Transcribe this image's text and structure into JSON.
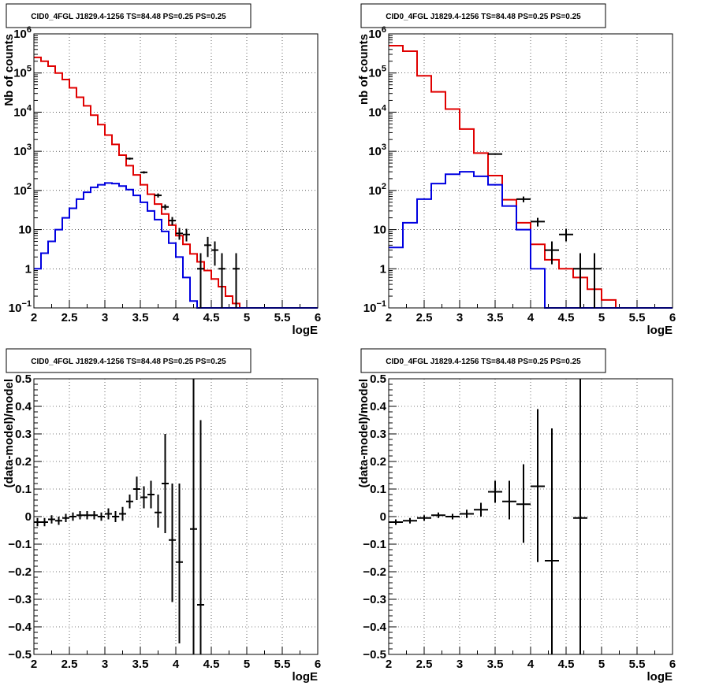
{
  "chart_data": [
    {
      "type": "line",
      "title": "CID0_4FGL J1829.4-1256 TS=84.48 PS=0.25 PS=0.25",
      "xlabel": "logE",
      "ylabel": "Nb of counts",
      "xlim": [
        2,
        6
      ],
      "ylim": [
        0.1,
        1000000
      ],
      "yscale": "log",
      "grid": true,
      "xticks": [
        "2",
        "2.5",
        "3",
        "3.5",
        "4",
        "4.5",
        "5",
        "5.5",
        "6"
      ],
      "yticks": [
        {
          "v": 0.1,
          "b": "10",
          "e": "−1"
        },
        {
          "v": 1,
          "b": "1",
          "e": ""
        },
        {
          "v": 10,
          "b": "10",
          "e": ""
        },
        {
          "v": 100,
          "b": "10",
          "e": "2"
        },
        {
          "v": 1000,
          "b": "10",
          "e": "3"
        },
        {
          "v": 10000,
          "b": "10",
          "e": "4"
        },
        {
          "v": 100000,
          "b": "10",
          "e": "5"
        },
        {
          "v": 1000000,
          "b": "10",
          "e": "6"
        }
      ],
      "bin_edges": [
        2.0,
        2.1,
        2.2,
        2.3,
        2.4,
        2.5,
        2.6,
        2.7,
        2.8,
        2.9,
        3.0,
        3.1,
        3.2,
        3.3,
        3.4,
        3.5,
        3.6,
        3.7,
        3.8,
        3.9,
        4.0,
        4.1,
        4.2,
        4.3,
        4.4,
        4.5,
        4.6,
        4.7,
        4.8,
        4.9,
        5.0,
        5.1,
        5.2,
        5.3,
        5.4,
        5.5,
        5.6,
        5.7,
        5.8,
        5.9,
        6.0
      ],
      "series": [
        {
          "name": "",
          "color": "#e00000",
          "style": "step",
          "values": [
            250000,
            200000,
            150000,
            100000,
            68000,
            42000,
            24000,
            14500,
            8400,
            4800,
            2600,
            1500,
            800,
            430,
            250,
            140,
            80,
            45,
            25,
            13,
            7,
            4.2,
            2.4,
            1.5,
            0.9,
            0.55,
            0.35,
            0.2,
            0.13,
            0.1,
            0.1,
            0.1,
            0.1,
            0.1,
            0.1,
            0.1,
            0.1,
            0.1,
            0.1,
            0.1
          ]
        },
        {
          "name": "",
          "color": "#0000e0",
          "style": "step",
          "values": [
            1,
            2.5,
            5,
            10,
            20,
            35,
            60,
            90,
            120,
            140,
            155,
            150,
            130,
            105,
            75,
            50,
            30,
            18,
            9,
            4.5,
            2,
            0.6,
            0.15,
            0.1,
            0.1,
            0.1,
            0.1,
            0.1,
            0.1,
            0.1,
            0.1,
            0.1,
            0.1,
            0.1,
            0.1,
            0.1,
            0.1,
            0.1,
            0.1,
            0.1
          ]
        }
      ],
      "points": [
        {
          "x": 3.35,
          "y": 650,
          "lo": 610,
          "hi": 690,
          "xerr": 0.05
        },
        {
          "x": 3.55,
          "y": 290,
          "lo": 270,
          "hi": 310,
          "xerr": 0.05
        },
        {
          "x": 3.75,
          "y": 75,
          "lo": 66,
          "hi": 84,
          "xerr": 0.05
        },
        {
          "x": 3.85,
          "y": 38,
          "lo": 32,
          "hi": 44,
          "xerr": 0.05
        },
        {
          "x": 3.95,
          "y": 17,
          "lo": 13,
          "hi": 21,
          "xerr": 0.05
        },
        {
          "x": 4.05,
          "y": 8,
          "lo": 5.5,
          "hi": 11,
          "xerr": 0.05
        },
        {
          "x": 4.15,
          "y": 7.5,
          "lo": 5,
          "hi": 10.5,
          "xerr": 0.05
        },
        {
          "x": 4.35,
          "y": 1,
          "lo": 0.1,
          "hi": 2.5,
          "xerr": 0.05
        },
        {
          "x": 4.45,
          "y": 4,
          "lo": 2,
          "hi": 6.5,
          "xerr": 0.05
        },
        {
          "x": 4.55,
          "y": 3,
          "lo": 1.2,
          "hi": 5,
          "xerr": 0.05
        },
        {
          "x": 4.65,
          "y": 1,
          "lo": 0.1,
          "hi": 2.5,
          "xerr": 0.05
        },
        {
          "x": 4.85,
          "y": 1,
          "lo": 0.1,
          "hi": 2.5,
          "xerr": 0.05
        }
      ]
    },
    {
      "type": "line",
      "title": "CID0_4FGL J1829.4-1256 TS=84.48 PS=0.25 PS=0.25",
      "xlabel": "logE",
      "ylabel": "nb of counts",
      "xlim": [
        2,
        6
      ],
      "ylim": [
        0.1,
        1000000
      ],
      "yscale": "log",
      "grid": true,
      "xticks": [
        "2",
        "2.5",
        "3",
        "3.5",
        "4",
        "4.5",
        "5",
        "5.5",
        "6"
      ],
      "yticks": [
        {
          "v": 0.1,
          "b": "10",
          "e": "−1"
        },
        {
          "v": 1,
          "b": "1",
          "e": ""
        },
        {
          "v": 10,
          "b": "10",
          "e": ""
        },
        {
          "v": 100,
          "b": "10",
          "e": "2"
        },
        {
          "v": 1000,
          "b": "10",
          "e": "3"
        },
        {
          "v": 10000,
          "b": "10",
          "e": "4"
        },
        {
          "v": 100000,
          "b": "10",
          "e": "5"
        },
        {
          "v": 1000000,
          "b": "10",
          "e": "6"
        }
      ],
      "bin_edges": [
        2.0,
        2.2,
        2.4,
        2.6,
        2.8,
        3.0,
        3.2,
        3.4,
        3.6,
        3.8,
        4.0,
        4.2,
        4.4,
        4.6,
        4.8,
        5.0,
        5.2,
        5.4,
        5.6,
        5.8,
        6.0
      ],
      "series": [
        {
          "name": "",
          "color": "#e00000",
          "style": "step",
          "values": [
            500000,
            360000,
            85000,
            33000,
            12000,
            3700,
            900,
            240,
            58,
            15,
            4.2,
            1.7,
            1.0,
            0.6,
            0.3,
            0.16,
            0.1,
            0.1,
            0.1,
            0.1
          ]
        },
        {
          "name": "",
          "color": "#0000e0",
          "style": "step",
          "values": [
            3.5,
            15,
            60,
            150,
            260,
            300,
            230,
            140,
            40,
            10,
            1,
            0.1,
            0.1,
            0.1,
            0.1,
            0.1,
            0.1,
            0.1,
            0.1,
            0.1
          ]
        }
      ],
      "points": [
        {
          "x": 3.5,
          "y": 850,
          "lo": 810,
          "hi": 890,
          "xerr": 0.1
        },
        {
          "x": 3.9,
          "y": 60,
          "lo": 50,
          "hi": 70,
          "xerr": 0.1
        },
        {
          "x": 4.1,
          "y": 16,
          "lo": 12,
          "hi": 20,
          "xerr": 0.1
        },
        {
          "x": 4.3,
          "y": 3,
          "lo": 1.3,
          "hi": 5,
          "xerr": 0.1
        },
        {
          "x": 4.5,
          "y": 7.5,
          "lo": 5,
          "hi": 10.5,
          "xerr": 0.1
        },
        {
          "x": 4.7,
          "y": 1,
          "lo": 0.1,
          "hi": 2.5,
          "xerr": 0.1
        },
        {
          "x": 4.9,
          "y": 1,
          "lo": 0.1,
          "hi": 2.5,
          "xerr": 0.1
        }
      ]
    },
    {
      "type": "scatter",
      "title": "CID0_4FGL J1829.4-1256 TS=84.48 PS=0.25 PS=0.25",
      "xlabel": "logE",
      "ylabel": "(data-model)/model",
      "xlim": [
        2,
        6
      ],
      "ylim": [
        -0.5,
        0.5
      ],
      "yscale": "linear",
      "grid": true,
      "xticks": [
        "2",
        "2.5",
        "3",
        "3.5",
        "4",
        "4.5",
        "5",
        "5.5",
        "6"
      ],
      "yticks": [
        {
          "v": -0.5,
          "b": "−0.5",
          "e": ""
        },
        {
          "v": -0.4,
          "b": "−0.4",
          "e": ""
        },
        {
          "v": -0.3,
          "b": "−0.3",
          "e": ""
        },
        {
          "v": -0.2,
          "b": "−0.2",
          "e": ""
        },
        {
          "v": -0.1,
          "b": "−0.1",
          "e": ""
        },
        {
          "v": 0,
          "b": "0",
          "e": ""
        },
        {
          "v": 0.1,
          "b": "0.1",
          "e": ""
        },
        {
          "v": 0.2,
          "b": "0.2",
          "e": ""
        },
        {
          "v": 0.3,
          "b": "0.3",
          "e": ""
        },
        {
          "v": 0.4,
          "b": "0.4",
          "e": ""
        },
        {
          "v": 0.5,
          "b": "0.5",
          "e": ""
        }
      ],
      "points": [
        {
          "x": 2.05,
          "y": -0.02,
          "lo": -0.035,
          "hi": -0.005,
          "xerr": 0.05
        },
        {
          "x": 2.15,
          "y": -0.02,
          "lo": -0.035,
          "hi": -0.005,
          "xerr": 0.05
        },
        {
          "x": 2.25,
          "y": -0.01,
          "lo": -0.025,
          "hi": 0.005,
          "xerr": 0.05
        },
        {
          "x": 2.35,
          "y": -0.015,
          "lo": -0.03,
          "hi": 0.0,
          "xerr": 0.05
        },
        {
          "x": 2.45,
          "y": -0.005,
          "lo": -0.02,
          "hi": 0.01,
          "xerr": 0.05
        },
        {
          "x": 2.55,
          "y": 0.0,
          "lo": -0.015,
          "hi": 0.015,
          "xerr": 0.05
        },
        {
          "x": 2.65,
          "y": 0.005,
          "lo": -0.01,
          "hi": 0.02,
          "xerr": 0.05
        },
        {
          "x": 2.75,
          "y": 0.005,
          "lo": -0.01,
          "hi": 0.02,
          "xerr": 0.05
        },
        {
          "x": 2.85,
          "y": 0.005,
          "lo": -0.01,
          "hi": 0.02,
          "xerr": 0.05
        },
        {
          "x": 2.95,
          "y": 0.0,
          "lo": -0.015,
          "hi": 0.015,
          "xerr": 0.05
        },
        {
          "x": 3.05,
          "y": 0.01,
          "lo": -0.01,
          "hi": 0.03,
          "xerr": 0.05
        },
        {
          "x": 3.15,
          "y": 0.0,
          "lo": -0.02,
          "hi": 0.02,
          "xerr": 0.05
        },
        {
          "x": 3.25,
          "y": 0.01,
          "lo": -0.015,
          "hi": 0.035,
          "xerr": 0.05
        },
        {
          "x": 3.35,
          "y": 0.055,
          "lo": 0.03,
          "hi": 0.08,
          "xerr": 0.05
        },
        {
          "x": 3.45,
          "y": 0.1,
          "lo": 0.06,
          "hi": 0.145,
          "xerr": 0.05
        },
        {
          "x": 3.55,
          "y": 0.07,
          "lo": 0.03,
          "hi": 0.11,
          "xerr": 0.05
        },
        {
          "x": 3.65,
          "y": 0.08,
          "lo": 0.03,
          "hi": 0.13,
          "xerr": 0.05
        },
        {
          "x": 3.75,
          "y": 0.015,
          "lo": -0.04,
          "hi": 0.08,
          "xerr": 0.05
        },
        {
          "x": 3.85,
          "y": 0.12,
          "lo": -0.06,
          "hi": 0.3,
          "xerr": 0.05
        },
        {
          "x": 3.95,
          "y": -0.085,
          "lo": -0.31,
          "hi": 0.12,
          "xerr": 0.05
        },
        {
          "x": 4.05,
          "y": -0.165,
          "lo": -0.46,
          "hi": 0.12,
          "xerr": 0.05
        },
        {
          "x": 4.25,
          "y": -0.045,
          "lo": -0.5,
          "hi": 0.5,
          "xerr": 0.05
        },
        {
          "x": 4.35,
          "y": -0.32,
          "lo": -0.5,
          "hi": 0.35,
          "xerr": 0.05
        }
      ]
    },
    {
      "type": "scatter",
      "title": "CID0_4FGL J1829.4-1256 TS=84.48 PS=0.25 PS=0.25",
      "xlabel": "logE",
      "ylabel": "(data-model)/model",
      "xlim": [
        2,
        6
      ],
      "ylim": [
        -0.5,
        0.5
      ],
      "yscale": "linear",
      "grid": true,
      "xticks": [
        "2",
        "2.5",
        "3",
        "3.5",
        "4",
        "4.5",
        "5",
        "5.5",
        "6"
      ],
      "yticks": [
        {
          "v": -0.5,
          "b": "−0.5",
          "e": ""
        },
        {
          "v": -0.4,
          "b": "−0.4",
          "e": ""
        },
        {
          "v": -0.3,
          "b": "−0.3",
          "e": ""
        },
        {
          "v": -0.2,
          "b": "−0.2",
          "e": ""
        },
        {
          "v": -0.1,
          "b": "−0.1",
          "e": ""
        },
        {
          "v": 0,
          "b": "0",
          "e": ""
        },
        {
          "v": 0.1,
          "b": "0.1",
          "e": ""
        },
        {
          "v": 0.2,
          "b": "0.2",
          "e": ""
        },
        {
          "v": 0.3,
          "b": "0.3",
          "e": ""
        },
        {
          "v": 0.4,
          "b": "0.4",
          "e": ""
        },
        {
          "v": 0.5,
          "b": "0.5",
          "e": ""
        }
      ],
      "points": [
        {
          "x": 2.1,
          "y": -0.02,
          "lo": -0.03,
          "hi": -0.01,
          "xerr": 0.1
        },
        {
          "x": 2.3,
          "y": -0.015,
          "lo": -0.025,
          "hi": -0.005,
          "xerr": 0.1
        },
        {
          "x": 2.5,
          "y": -0.005,
          "lo": -0.015,
          "hi": 0.005,
          "xerr": 0.1
        },
        {
          "x": 2.7,
          "y": 0.005,
          "lo": -0.005,
          "hi": 0.015,
          "xerr": 0.1
        },
        {
          "x": 2.9,
          "y": 0.0,
          "lo": -0.01,
          "hi": 0.01,
          "xerr": 0.1
        },
        {
          "x": 3.1,
          "y": 0.01,
          "lo": -0.005,
          "hi": 0.025,
          "xerr": 0.1
        },
        {
          "x": 3.3,
          "y": 0.025,
          "lo": 0.0,
          "hi": 0.05,
          "xerr": 0.1
        },
        {
          "x": 3.5,
          "y": 0.09,
          "lo": 0.05,
          "hi": 0.13,
          "xerr": 0.1
        },
        {
          "x": 3.7,
          "y": 0.055,
          "lo": -0.01,
          "hi": 0.13,
          "xerr": 0.1
        },
        {
          "x": 3.9,
          "y": 0.045,
          "lo": -0.095,
          "hi": 0.19,
          "xerr": 0.1
        },
        {
          "x": 4.1,
          "y": 0.11,
          "lo": -0.165,
          "hi": 0.39,
          "xerr": 0.1
        },
        {
          "x": 4.3,
          "y": -0.16,
          "lo": -0.5,
          "hi": 0.32,
          "xerr": 0.1
        },
        {
          "x": 4.7,
          "y": -0.005,
          "lo": -0.5,
          "hi": 0.5,
          "xerr": 0.1
        }
      ]
    }
  ]
}
